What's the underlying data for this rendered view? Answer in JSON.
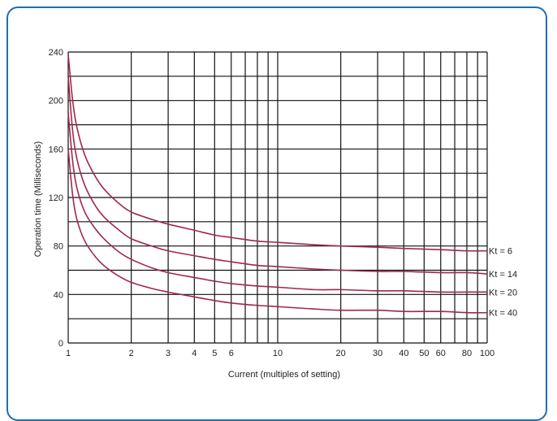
{
  "chart_data": {
    "type": "line",
    "xlabel": "Current (multiples of setting)",
    "ylabel": "Operation time (Milliseconds)",
    "xscale": "log",
    "xlim": [
      1,
      100
    ],
    "ylim": [
      0,
      240
    ],
    "grid": true,
    "x_ticks": [
      1,
      2,
      3,
      4,
      5,
      6,
      10,
      20,
      30,
      40,
      50,
      60,
      80,
      100
    ],
    "x_tick_labels": [
      "1",
      "2",
      "3",
      "4",
      "5",
      "6",
      "10",
      "20",
      "30",
      "40",
      "50",
      "60",
      "80",
      "100"
    ],
    "x_gridlines": [
      1,
      2,
      3,
      4,
      5,
      6,
      7,
      8,
      9,
      10,
      20,
      30,
      40,
      50,
      60,
      70,
      80,
      90,
      100
    ],
    "y_ticks": [
      0,
      40,
      80,
      120,
      160,
      200,
      240
    ],
    "y_tick_labels": [
      "0",
      "40",
      "80",
      "120",
      "160",
      "200",
      "240"
    ],
    "y_gridlines": [
      0,
      20,
      40,
      60,
      80,
      100,
      120,
      140,
      160,
      180,
      200,
      220,
      240
    ],
    "line_color": "#a0284a",
    "grid_color": "#111111",
    "series": [
      {
        "name": "Kt = 6",
        "x": [
          1,
          1.05,
          1.1,
          1.2,
          1.35,
          1.5,
          1.75,
          2,
          2.5,
          3,
          4,
          5,
          6,
          8,
          10,
          15,
          20,
          30,
          40,
          60,
          80,
          100
        ],
        "values": [
          238,
          200,
          178,
          155,
          137,
          126,
          115,
          108,
          102,
          98,
          93,
          89,
          87,
          84,
          83,
          81,
          80,
          79,
          78,
          77,
          76,
          76
        ]
      },
      {
        "name": "Kt = 14",
        "x": [
          1,
          1.05,
          1.1,
          1.2,
          1.35,
          1.5,
          1.75,
          2,
          2.5,
          3,
          4,
          5,
          6,
          8,
          10,
          15,
          20,
          30,
          40,
          60,
          80,
          100
        ],
        "values": [
          220,
          175,
          152,
          130,
          113,
          103,
          93,
          86,
          80,
          76,
          72,
          69,
          67,
          64,
          63,
          61,
          60,
          59,
          59,
          58,
          58,
          57
        ]
      },
      {
        "name": "Kt = 20",
        "x": [
          1,
          1.05,
          1.1,
          1.2,
          1.35,
          1.5,
          1.75,
          2,
          2.5,
          3,
          4,
          5,
          6,
          8,
          10,
          15,
          20,
          30,
          40,
          60,
          80,
          100
        ],
        "values": [
          190,
          150,
          128,
          108,
          94,
          85,
          75,
          69,
          62,
          58,
          54,
          51,
          49,
          47,
          46,
          44,
          44,
          43,
          43,
          42,
          42,
          42
        ]
      },
      {
        "name": "Kt = 40",
        "x": [
          1,
          1.05,
          1.1,
          1.2,
          1.35,
          1.5,
          1.75,
          2,
          2.5,
          3,
          4,
          5,
          6,
          8,
          10,
          15,
          20,
          30,
          40,
          60,
          80,
          100
        ],
        "values": [
          160,
          122,
          102,
          84,
          71,
          63,
          55,
          50,
          45,
          42,
          38,
          35,
          33,
          31,
          30,
          28,
          27,
          27,
          26,
          26,
          25,
          25
        ]
      }
    ]
  }
}
